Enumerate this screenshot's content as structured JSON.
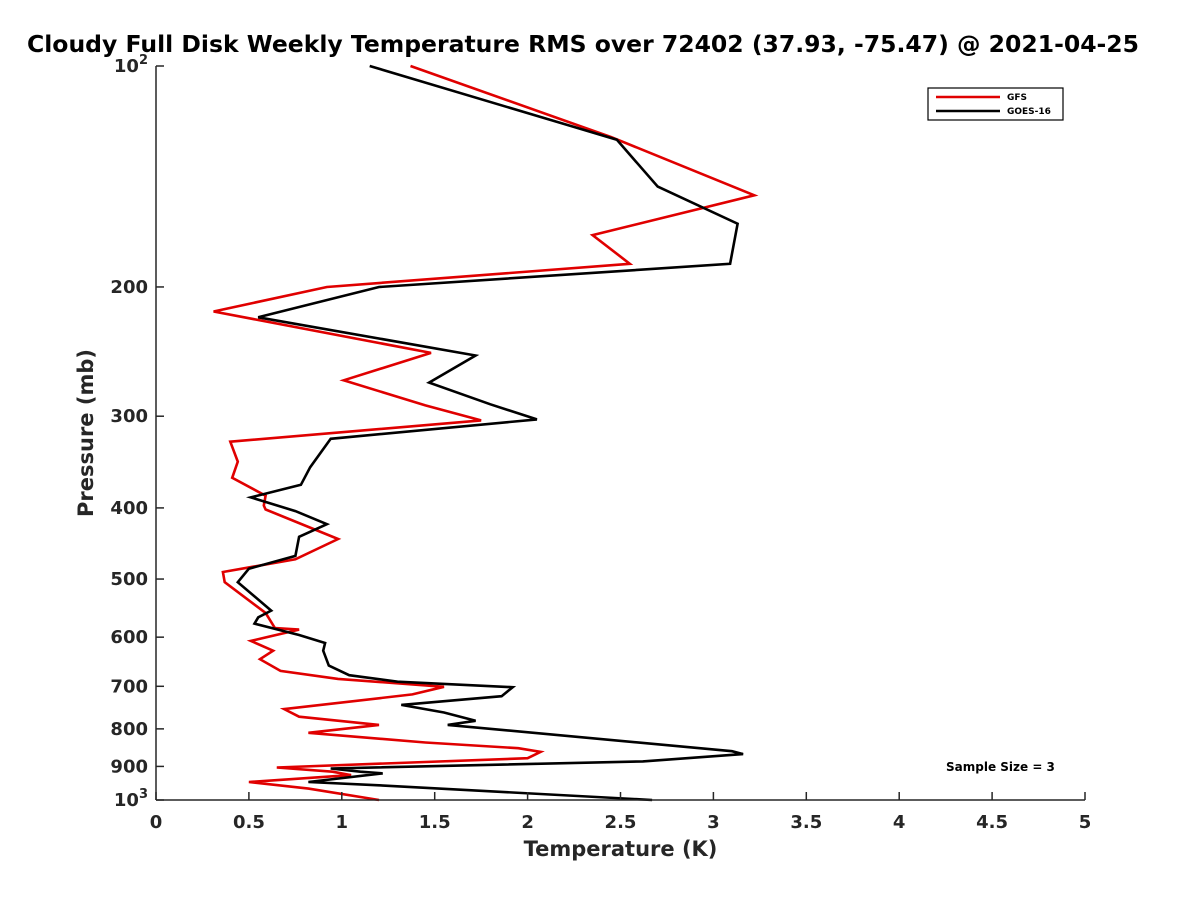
{
  "chart_data": {
    "type": "line",
    "title": "Cloudy Full Disk Weekly Temperature RMS over 72402 (37.93, -75.47) @ 2021-04-25",
    "xlabel": "Temperature (K)",
    "ylabel": "Pressure (mb)",
    "xlim": [
      0,
      5
    ],
    "ylim": [
      100,
      1000
    ],
    "y_scale": "log",
    "y_reversed": true,
    "x_ticks": [
      "0",
      "0.5",
      "1",
      "1.5",
      "2",
      "2.5",
      "3",
      "3.5",
      "4",
      "4.5",
      "5"
    ],
    "y_ticks": [
      {
        "value": 100,
        "base": "10",
        "exp": "2"
      },
      {
        "value": 200,
        "label": "200"
      },
      {
        "value": 300,
        "label": "300"
      },
      {
        "value": 400,
        "label": "400"
      },
      {
        "value": 500,
        "label": "500"
      },
      {
        "value": 600,
        "label": "600"
      },
      {
        "value": 700,
        "label": "700"
      },
      {
        "value": 800,
        "label": "800"
      },
      {
        "value": 900,
        "label": "900"
      },
      {
        "value": 1000,
        "base": "10",
        "exp": "3"
      }
    ],
    "grid": false,
    "legend_position": "top-right",
    "series": [
      {
        "name": "GFS",
        "color": "#e00000",
        "points": [
          [
            1.37,
            100
          ],
          [
            2.45,
            125
          ],
          [
            3.22,
            150
          ],
          [
            2.35,
            170
          ],
          [
            2.55,
            186
          ],
          [
            0.92,
            200
          ],
          [
            0.31,
            216
          ],
          [
            1.48,
            246
          ],
          [
            1.01,
            268
          ],
          [
            1.45,
            290
          ],
          [
            1.75,
            304
          ],
          [
            0.4,
            325
          ],
          [
            0.44,
            346
          ],
          [
            0.41,
            364
          ],
          [
            0.59,
            385
          ],
          [
            0.58,
            397
          ],
          [
            0.59,
            402
          ],
          [
            0.98,
            441
          ],
          [
            0.75,
            470
          ],
          [
            0.36,
            489
          ],
          [
            0.37,
            505
          ],
          [
            0.59,
            556
          ],
          [
            0.64,
            583
          ],
          [
            0.77,
            586
          ],
          [
            0.51,
            607
          ],
          [
            0.63,
            626
          ],
          [
            0.56,
            643
          ],
          [
            0.67,
            667
          ],
          [
            0.98,
            684
          ],
          [
            1.55,
            701
          ],
          [
            1.38,
            718
          ],
          [
            0.69,
            752
          ],
          [
            0.77,
            770
          ],
          [
            1.2,
            790
          ],
          [
            0.82,
            810
          ],
          [
            1.45,
            835
          ],
          [
            1.95,
            850
          ],
          [
            2.07,
            860
          ],
          [
            2.0,
            877
          ],
          [
            0.65,
            903
          ],
          [
            0.95,
            915
          ],
          [
            1.05,
            925
          ],
          [
            0.5,
            945
          ],
          [
            0.82,
            965
          ],
          [
            1.2,
            1000
          ]
        ]
      },
      {
        "name": "GOES-16",
        "color": "#000000",
        "points": [
          [
            1.15,
            100
          ],
          [
            2.48,
            126
          ],
          [
            2.7,
            146
          ],
          [
            3.13,
            164
          ],
          [
            3.09,
            186
          ],
          [
            1.2,
            200
          ],
          [
            0.55,
            220
          ],
          [
            1.72,
            248
          ],
          [
            1.47,
            270
          ],
          [
            1.8,
            289
          ],
          [
            2.05,
            303
          ],
          [
            0.94,
            322
          ],
          [
            0.83,
            352
          ],
          [
            0.78,
            372
          ],
          [
            0.51,
            387
          ],
          [
            0.75,
            404
          ],
          [
            0.92,
            421
          ],
          [
            0.77,
            438
          ],
          [
            0.75,
            465
          ],
          [
            0.5,
            484
          ],
          [
            0.44,
            505
          ],
          [
            0.62,
            552
          ],
          [
            0.55,
            564
          ],
          [
            0.53,
            575
          ],
          [
            0.77,
            596
          ],
          [
            0.91,
            611
          ],
          [
            0.9,
            626
          ],
          [
            0.93,
            656
          ],
          [
            1.04,
            676
          ],
          [
            1.3,
            690
          ],
          [
            1.92,
            702
          ],
          [
            1.86,
            722
          ],
          [
            1.32,
            742
          ],
          [
            1.55,
            760
          ],
          [
            1.72,
            780
          ],
          [
            1.57,
            790
          ],
          [
            3.1,
            858
          ],
          [
            3.16,
            866
          ],
          [
            2.62,
            886
          ],
          [
            0.94,
            906
          ],
          [
            1.1,
            915
          ],
          [
            1.22,
            920
          ],
          [
            0.82,
            945
          ],
          [
            1.2,
            955
          ],
          [
            2.67,
            1000
          ]
        ]
      }
    ],
    "annotations": [
      "Sample Size = 3"
    ]
  }
}
